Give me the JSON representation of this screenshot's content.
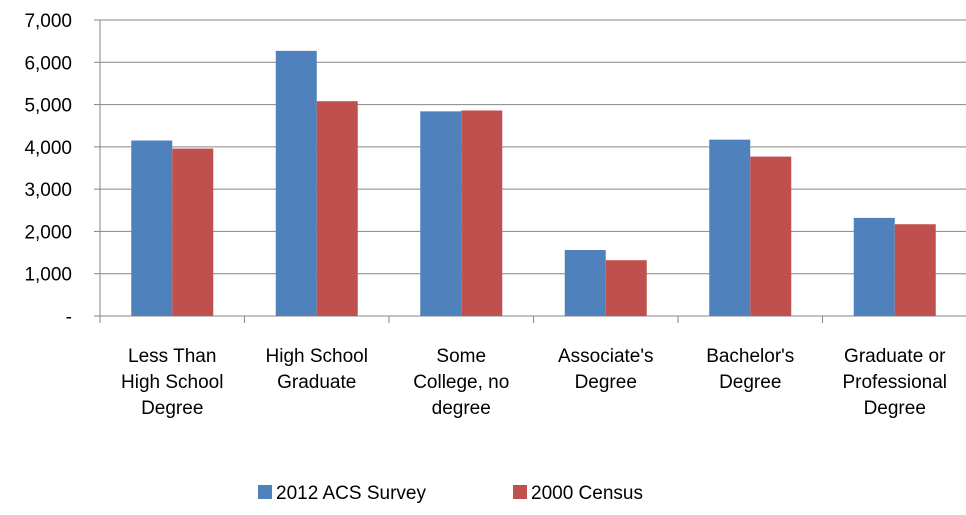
{
  "chart_data": {
    "type": "bar",
    "title": "",
    "xlabel": "",
    "ylabel": "",
    "categories": [
      [
        "Less Than",
        "High School",
        "Degree"
      ],
      [
        "High School",
        "Graduate"
      ],
      [
        "Some",
        "College, no",
        "degree"
      ],
      [
        "Associate's",
        "Degree"
      ],
      [
        "Bachelor's",
        "Degree"
      ],
      [
        "Graduate or",
        "Professional",
        "Degree"
      ]
    ],
    "series": [
      {
        "name": "2012 ACS Survey",
        "color": "#4F81BD",
        "values": [
          4150,
          6270,
          4840,
          1560,
          4170,
          2320
        ]
      },
      {
        "name": "2000 Census",
        "color": "#C0504D",
        "values": [
          3960,
          5080,
          4860,
          1320,
          3770,
          2170
        ]
      }
    ],
    "ylim": [
      0,
      7000
    ],
    "yticks": [
      0,
      1000,
      2000,
      3000,
      4000,
      5000,
      6000,
      7000
    ],
    "ytick_labels": [
      "-",
      "1,000",
      "2,000",
      "3,000",
      "4,000",
      "5,000",
      "6,000",
      "7,000"
    ],
    "grid": true,
    "legend_position": "bottom"
  }
}
